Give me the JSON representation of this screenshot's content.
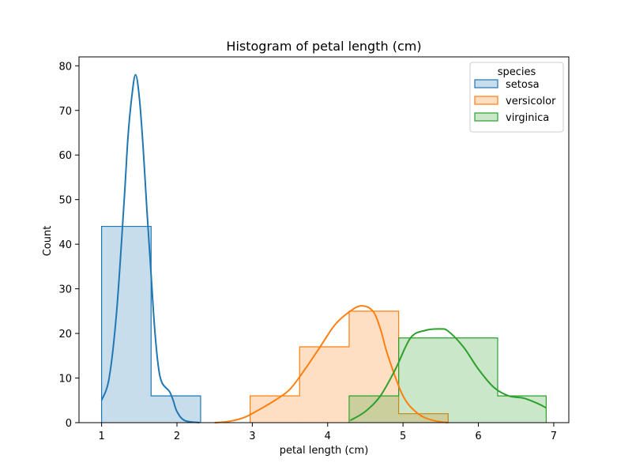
{
  "chart_data": {
    "type": "histogram",
    "title": "Histogram of petal length (cm)",
    "xlabel": "petal length (cm)",
    "ylabel": "Count",
    "xlim": [
      0.7,
      7.2
    ],
    "ylim": [
      0,
      82
    ],
    "xticks": [
      1,
      2,
      3,
      4,
      5,
      6,
      7
    ],
    "yticks": [
      0,
      10,
      20,
      30,
      40,
      50,
      60,
      70,
      80
    ],
    "grid": false,
    "legend": {
      "title": "species",
      "placement": "top-right"
    },
    "bin_edges": [
      1.0,
      1.657,
      2.314,
      2.971,
      3.628,
      4.285,
      4.942,
      5.599,
      6.256,
      6.9
    ],
    "series": [
      {
        "name": "setosa",
        "color": "#1f77b4",
        "bins": [
          {
            "x0": 1.0,
            "x1": 1.657,
            "count": 44
          },
          {
            "x0": 1.657,
            "x1": 2.314,
            "count": 6
          }
        ],
        "kde": [
          [
            1.0,
            5
          ],
          [
            1.1,
            10
          ],
          [
            1.2,
            25
          ],
          [
            1.3,
            50
          ],
          [
            1.35,
            64
          ],
          [
            1.4,
            73
          ],
          [
            1.45,
            78
          ],
          [
            1.5,
            73
          ],
          [
            1.55,
            62
          ],
          [
            1.6,
            48
          ],
          [
            1.65,
            35
          ],
          [
            1.7,
            22
          ],
          [
            1.75,
            13
          ],
          [
            1.8,
            9
          ],
          [
            1.9,
            7
          ],
          [
            1.95,
            5
          ],
          [
            2.0,
            2.5
          ],
          [
            2.1,
            0.5
          ],
          [
            2.3,
            0
          ]
        ]
      },
      {
        "name": "versicolor",
        "color": "#ff7f0e",
        "bins": [
          {
            "x0": 2.971,
            "x1": 3.628,
            "count": 6
          },
          {
            "x0": 3.628,
            "x1": 4.285,
            "count": 17
          },
          {
            "x0": 4.285,
            "x1": 4.942,
            "count": 25
          },
          {
            "x0": 4.942,
            "x1": 5.599,
            "count": 2
          }
        ],
        "kde": [
          [
            2.5,
            0
          ],
          [
            2.7,
            0.3
          ],
          [
            2.9,
            1.2
          ],
          [
            3.1,
            3
          ],
          [
            3.3,
            5
          ],
          [
            3.5,
            7.5
          ],
          [
            3.7,
            12
          ],
          [
            3.9,
            17
          ],
          [
            4.1,
            22
          ],
          [
            4.3,
            25
          ],
          [
            4.45,
            26.2
          ],
          [
            4.6,
            25
          ],
          [
            4.7,
            21
          ],
          [
            4.8,
            15
          ],
          [
            5.0,
            6
          ],
          [
            5.2,
            2
          ],
          [
            5.4,
            0.5
          ],
          [
            5.6,
            0
          ]
        ]
      },
      {
        "name": "virginica",
        "color": "#2ca02c",
        "bins": [
          {
            "x0": 4.285,
            "x1": 4.942,
            "count": 6
          },
          {
            "x0": 4.942,
            "x1": 6.256,
            "count": 19
          },
          {
            "x0": 6.256,
            "x1": 6.9,
            "count": 6
          }
        ],
        "kde": [
          [
            4.3,
            0.5
          ],
          [
            4.5,
            2.5
          ],
          [
            4.7,
            6
          ],
          [
            4.9,
            12
          ],
          [
            5.1,
            19
          ],
          [
            5.3,
            20.7
          ],
          [
            5.5,
            21
          ],
          [
            5.6,
            20.5
          ],
          [
            5.8,
            17
          ],
          [
            6.0,
            12
          ],
          [
            6.2,
            8
          ],
          [
            6.4,
            6
          ],
          [
            6.6,
            5.5
          ],
          [
            6.8,
            4.2
          ],
          [
            6.9,
            3.3
          ]
        ]
      }
    ]
  }
}
